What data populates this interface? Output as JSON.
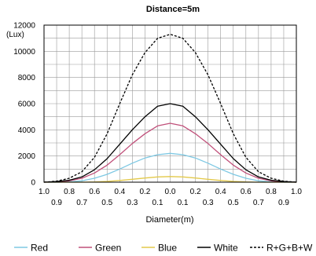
{
  "chart_data": {
    "type": "line",
    "title": "Distance=5m",
    "ylabel": "(Lux)",
    "xlabel": "Diameter(m)",
    "ylim": [
      0,
      12000
    ],
    "yticks": [
      "0",
      "2000",
      "4000",
      "6000",
      "8000",
      "10000",
      "12000"
    ],
    "xticks_top": [
      "1.0",
      "0.8",
      "0.6",
      "0.4",
      "0.2",
      "0.0",
      "0.2",
      "0.4",
      "0.6",
      "0.8",
      "1.0"
    ],
    "xticks_bottom": [
      "0.9",
      "0.7",
      "0.5",
      "0.3",
      "0.1",
      "0.1",
      "0.3",
      "0.5",
      "0.7",
      "0.9"
    ],
    "x": [
      -1.0,
      -0.9,
      -0.8,
      -0.7,
      -0.6,
      -0.5,
      -0.4,
      -0.3,
      -0.2,
      -0.1,
      0.0,
      0.1,
      0.2,
      0.3,
      0.4,
      0.5,
      0.6,
      0.7,
      0.8,
      0.9,
      1.0
    ],
    "grid": true,
    "legend_position": "bottom",
    "series": [
      {
        "name": "Red",
        "color": "#7ec8e3",
        "dash": "solid",
        "values": [
          0,
          0,
          30,
          100,
          300,
          600,
          1000,
          1450,
          1850,
          2100,
          2200,
          2100,
          1850,
          1450,
          1000,
          600,
          300,
          100,
          30,
          0,
          0
        ]
      },
      {
        "name": "Green",
        "color": "#c0507a",
        "dash": "solid",
        "values": [
          0,
          20,
          100,
          300,
          700,
          1300,
          2100,
          2950,
          3700,
          4300,
          4500,
          4300,
          3700,
          2950,
          2100,
          1300,
          700,
          300,
          100,
          20,
          0
        ]
      },
      {
        "name": "Blue",
        "color": "#e3c94a",
        "dash": "solid",
        "values": [
          0,
          0,
          0,
          0,
          20,
          60,
          130,
          220,
          320,
          400,
          430,
          400,
          320,
          220,
          130,
          60,
          20,
          0,
          0,
          0,
          0
        ]
      },
      {
        "name": "White",
        "color": "#000000",
        "dash": "solid",
        "values": [
          0,
          50,
          150,
          400,
          950,
          1800,
          2900,
          4000,
          5000,
          5800,
          6000,
          5800,
          5000,
          4000,
          2900,
          1800,
          950,
          400,
          150,
          50,
          0
        ]
      },
      {
        "name": "R+G+B+W",
        "color": "#000000",
        "dash": "dashed",
        "values": [
          0,
          80,
          300,
          800,
          1900,
          3700,
          6000,
          8200,
          9900,
          11000,
          11300,
          11000,
          9900,
          8200,
          6000,
          3700,
          1900,
          800,
          300,
          80,
          0
        ]
      }
    ]
  }
}
